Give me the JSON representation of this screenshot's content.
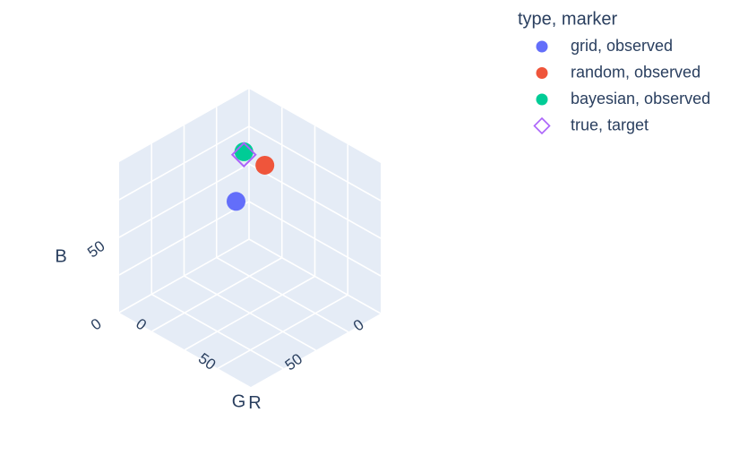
{
  "chart_data": {
    "type": "scatter3d",
    "axes": {
      "x": {
        "label": "R",
        "ticks": [
          0,
          50
        ]
      },
      "y": {
        "label": "G",
        "ticks": [
          0,
          50
        ]
      },
      "z": {
        "label": "B",
        "ticks": [
          0,
          50
        ]
      }
    },
    "scene_background": "#E5ECF6",
    "grid": true,
    "legend": {
      "title": "type, marker",
      "placement": "top-right"
    },
    "series": [
      {
        "name": "grid, observed",
        "color": "#636EFA",
        "symbol": "circle",
        "points": [
          {
            "x": 0,
            "y": 10,
            "z": 30
          }
        ]
      },
      {
        "name": "random, observed",
        "color": "#EF553B",
        "symbol": "circle",
        "points": [
          {
            "x": 15,
            "y": 3,
            "z": 58
          }
        ]
      },
      {
        "name": "bayesian, observed",
        "color": "#00CC96",
        "symbol": "circle",
        "points": [
          {
            "x": 3,
            "y": 7,
            "z": 63
          }
        ]
      },
      {
        "name": "true, target",
        "color": "#AB63FA",
        "symbol": "diamond-open",
        "points": [
          {
            "x": 4,
            "y": 8,
            "z": 62
          }
        ]
      }
    ]
  }
}
